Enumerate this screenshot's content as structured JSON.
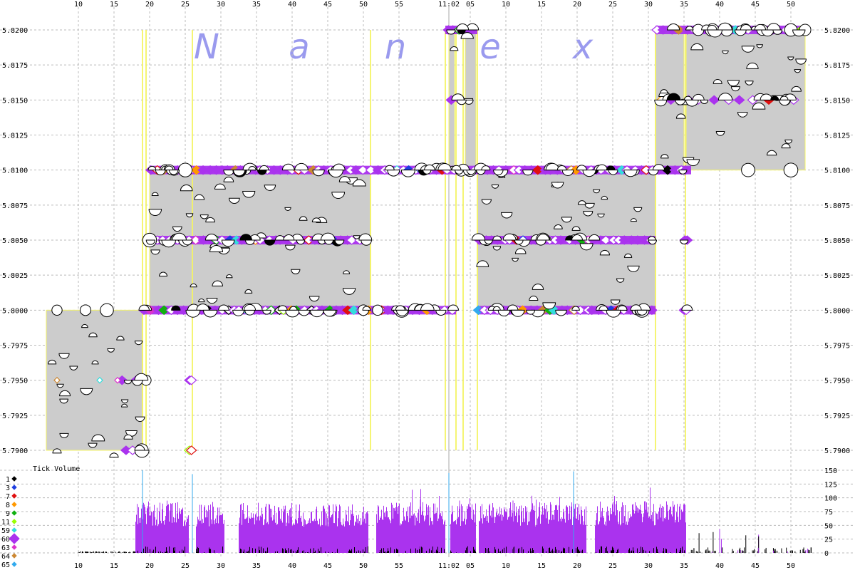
{
  "chart_data": {
    "type": "scatter",
    "brand_letters": [
      "N",
      "a",
      "n",
      "e",
      "x"
    ],
    "time_ticks": [
      "10",
      "15",
      "20",
      "25",
      "30",
      "35",
      "40",
      "45",
      "50",
      "55",
      "11:02",
      "05",
      "10",
      "15",
      "20",
      "25",
      "30",
      "35",
      "40",
      "45",
      "50"
    ],
    "time_tick_minutes": [
      -50,
      -45,
      -40,
      -35,
      -30,
      -25,
      -20,
      -15,
      -10,
      -5,
      2,
      5,
      10,
      15,
      20,
      25,
      30,
      35,
      40,
      45,
      50
    ],
    "price_ticks": [
      "5.7900",
      "5.7925",
      "5.7950",
      "5.7975",
      "5.8000",
      "5.8025",
      "5.8050",
      "5.8075",
      "5.8100",
      "5.8125",
      "5.8150",
      "5.8175",
      "5.8200"
    ],
    "price_range": [
      5.79,
      5.82
    ],
    "time_range_minutes": [
      -56,
      54
    ],
    "price_levels": [
      5.79,
      5.795,
      5.8,
      5.805,
      5.81,
      5.815,
      5.82
    ],
    "spread_bands": [
      {
        "t0": -54.5,
        "t1": -41,
        "lo": 5.79,
        "hi": 5.8
      },
      {
        "t0": -40,
        "t1": -9,
        "lo": 5.8,
        "hi": 5.81
      },
      {
        "t0": 2,
        "t1": 2.8,
        "lo": 5.81,
        "hi": 5.82
      },
      {
        "t0": 4.3,
        "t1": 5.8,
        "lo": 5.81,
        "hi": 5.82
      },
      {
        "t0": 6,
        "t1": 31,
        "lo": 5.8,
        "hi": 5.81
      },
      {
        "t0": 31,
        "t1": 35,
        "lo": 5.81,
        "hi": 5.82
      },
      {
        "t0": 35.3,
        "t1": 52,
        "lo": 5.81,
        "hi": 5.82
      }
    ],
    "yellow_lines": [
      -41,
      -40.5,
      -34,
      -9,
      1.5,
      3,
      4,
      6,
      31,
      35.2
    ],
    "volume_ticks": [
      "0",
      "25",
      "50",
      "75",
      "100",
      "125",
      "150"
    ],
    "volume_range": [
      0,
      150
    ],
    "volume_title": "Tick Volume",
    "volume_segments": [
      {
        "t0": -42,
        "t1": -34.5,
        "level": 88
      },
      {
        "t0": -33.5,
        "t1": -29.5,
        "level": 86
      },
      {
        "t0": -27.5,
        "t1": -9.3,
        "level": 87
      },
      {
        "t0": -8.2,
        "t1": 1.5,
        "level": 88
      },
      {
        "t0": 2.2,
        "t1": 5.8,
        "level": 89
      },
      {
        "t0": 6.2,
        "t1": 21.3,
        "level": 88
      },
      {
        "t0": 22.5,
        "t1": 35.3,
        "level": 90
      }
    ],
    "legend": [
      {
        "label": "1",
        "color": "#000000"
      },
      {
        "label": "3",
        "color": "#1f3fe0"
      },
      {
        "label": "7",
        "color": "#e01010"
      },
      {
        "label": "8",
        "color": "#ff9900"
      },
      {
        "label": "9",
        "color": "#10b010"
      },
      {
        "label": "11",
        "color": "#99ff00"
      },
      {
        "label": "59",
        "color": "#33dddd"
      },
      {
        "label": "60",
        "color": "#aa33ee"
      },
      {
        "label": "63",
        "color": "#dd33cc"
      },
      {
        "label": "64",
        "color": "#cc8833"
      },
      {
        "label": "65",
        "color": "#33aaee"
      }
    ],
    "colors": {
      "band": "#cccccc",
      "band_edge": "#f4f466",
      "grid": "#bbbbbb",
      "primary_series": "#aa33ee",
      "trade_mark_fill": "#ffffff",
      "trade_mark_stroke": "#000000"
    }
  }
}
